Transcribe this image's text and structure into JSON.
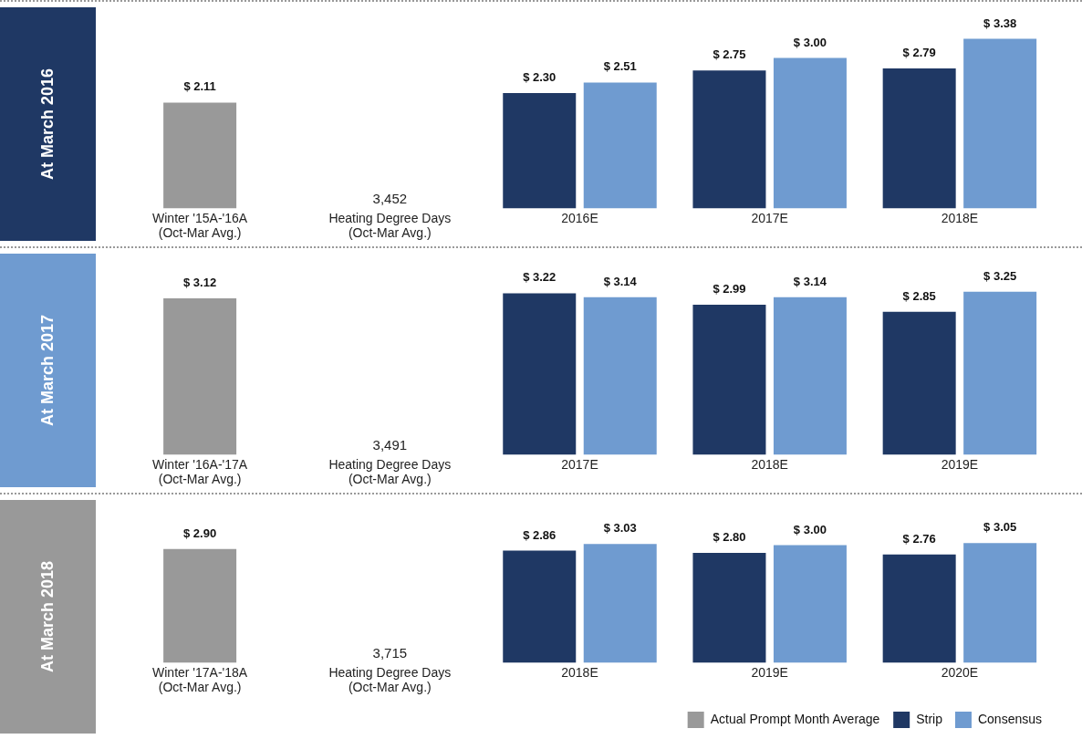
{
  "chart_data": [
    {
      "type": "bar",
      "title": "At March 2016",
      "categories": [
        "Winter '15A-'16A\n(Oct-Mar Avg.)",
        "Heating Degree Days\n(Oct-Mar Avg.)",
        "2016E",
        "2017E",
        "2018E"
      ],
      "tick_labels": "x",
      "legend": false,
      "series": [
        {
          "color": "#999999",
          "values": [
            2.11,
            null,
            null,
            null,
            null
          ],
          "value_labels": [
            "$ 2.11",
            null,
            null,
            null,
            null
          ]
        },
        {
          "color": "#1f3864",
          "values": [
            null,
            null,
            2.3,
            2.75,
            2.79
          ],
          "value_labels": [
            null,
            null,
            "$ 2.30",
            "$ 2.75",
            "$ 2.79"
          ]
        },
        {
          "color": "#6f9bd0",
          "values": [
            null,
            null,
            2.51,
            3.0,
            3.38
          ],
          "value_labels": [
            null,
            null,
            "$ 2.51",
            "$ 3.00",
            "$ 3.38"
          ]
        }
      ],
      "annotations": [
        "3,452"
      ]
    },
    {
      "type": "bar",
      "title": "At March 2017",
      "categories": [
        "Winter '16A-'17A\n(Oct-Mar Avg.)",
        "Heating Degree Days\n(Oct-Mar Avg.)",
        "2017E",
        "2018E",
        "2019E"
      ],
      "tick_labels": "x",
      "legend": false,
      "series": [
        {
          "color": "#999999",
          "values": [
            3.12,
            null,
            null,
            null,
            null
          ],
          "value_labels": [
            "$ 3.12",
            null,
            null,
            null,
            null
          ]
        },
        {
          "color": "#1f3864",
          "values": [
            null,
            null,
            3.22,
            2.99,
            2.85
          ],
          "value_labels": [
            null,
            null,
            "$ 3.22",
            "$ 2.99",
            "$ 2.85"
          ]
        },
        {
          "color": "#6f9bd0",
          "values": [
            null,
            null,
            3.14,
            3.14,
            3.25
          ],
          "value_labels": [
            null,
            null,
            "$ 3.14",
            "$ 3.14",
            "$ 3.25"
          ]
        }
      ],
      "annotations": [
        "3,491"
      ]
    },
    {
      "type": "bar",
      "title": "At March 2018",
      "categories": [
        "Winter '17A-'18A\n(Oct-Mar Avg.)",
        "Heating Degree Days\n(Oct-Mar Avg.)",
        "2018E",
        "2019E",
        "2020E"
      ],
      "tick_labels": "x",
      "legend": "bottom right",
      "series": [
        {
          "name": "Actual Prompt Month Average",
          "color": "#999999",
          "values": [
            2.9,
            null,
            null,
            null,
            null
          ],
          "value_labels": [
            "$ 2.90",
            null,
            null,
            null,
            null
          ]
        },
        {
          "name": "Strip",
          "color": "#1f3864",
          "values": [
            null,
            null,
            2.86,
            2.8,
            2.76
          ],
          "value_labels": [
            null,
            null,
            "$ 2.86",
            "$ 2.80",
            "$ 2.76"
          ]
        },
        {
          "name": "Consensus",
          "color": "#6f9bd0",
          "values": [
            null,
            null,
            3.03,
            3.0,
            3.05
          ],
          "value_labels": [
            null,
            null,
            "$ 3.03",
            "$ 3.00",
            "$ 3.05"
          ]
        }
      ],
      "annotations": [
        "3,715"
      ]
    }
  ]
}
